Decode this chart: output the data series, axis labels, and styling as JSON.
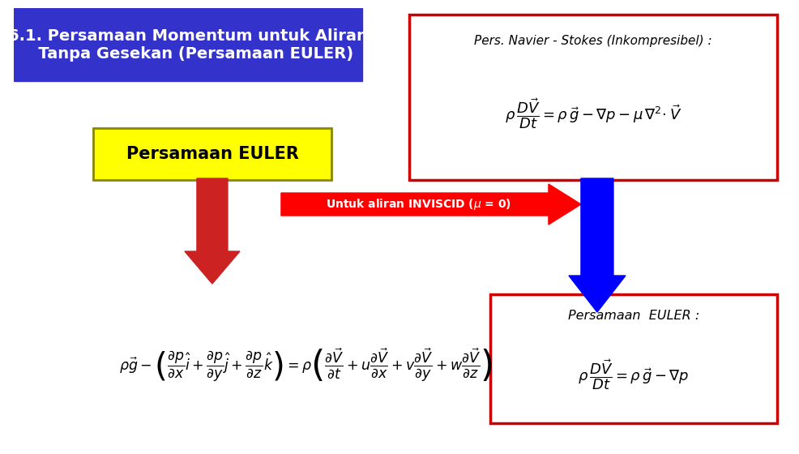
{
  "bg_color": "#ffffff",
  "title_bg": "#3333cc",
  "title_text": "6.1. Persamaan Momentum untuk Aliran\n   Tanpa Gesekan (Persamaan EULER)",
  "title_color": "#ffffff",
  "title_fontsize": 14,
  "navier_box_color": "#cc0000",
  "navier_title": "Pers. Navier - Stokes (Inkompresibel) :",
  "euler_box_color": "#cc0000",
  "euler_title": "Persamaan  EULER :",
  "label_euler": "Persamaan EULER",
  "label_euler_color": "#000000",
  "label_euler_bg": "#FFFF00",
  "label_euler_border": "#888800"
}
